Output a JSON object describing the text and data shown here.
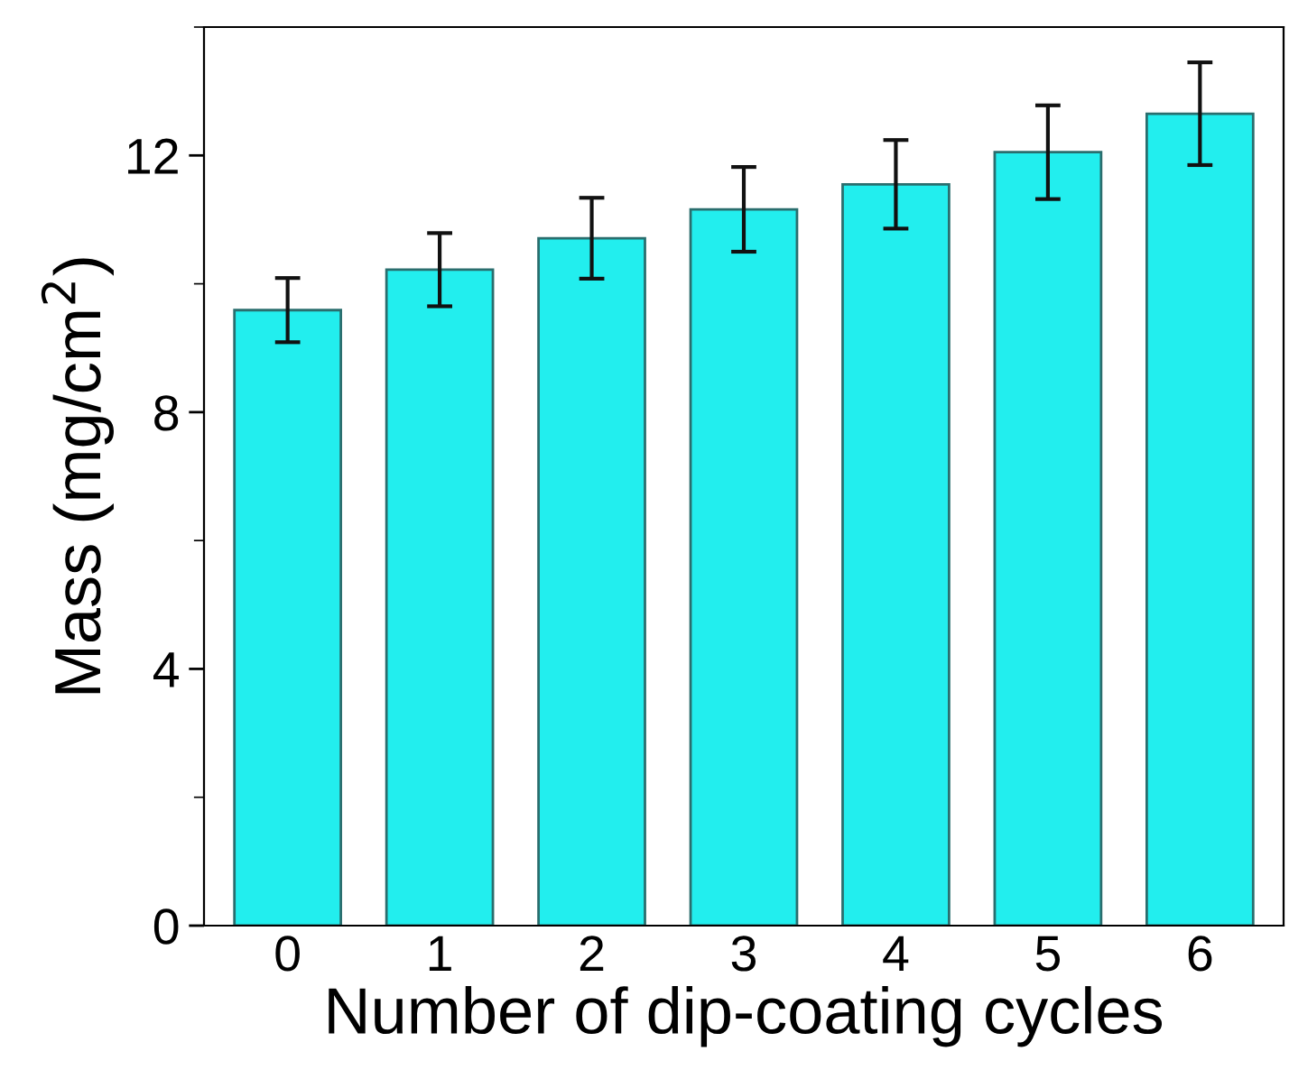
{
  "chart_data": {
    "type": "bar",
    "xlabel": "Number of dip-coating cycles",
    "ylabel": "Mass (mg/cm$^{2}$)",
    "categories": [
      "0",
      "1",
      "2",
      "3",
      "4",
      "5",
      "6"
    ],
    "values": [
      9.59,
      10.22,
      10.71,
      11.16,
      11.55,
      12.05,
      12.65
    ],
    "errors": [
      0.5,
      0.57,
      0.63,
      0.66,
      0.69,
      0.73,
      0.8
    ],
    "color": "#22eeee",
    "ylim": [
      0,
      14
    ],
    "yticks": [
      0,
      4,
      8,
      12
    ],
    "grid": false
  }
}
